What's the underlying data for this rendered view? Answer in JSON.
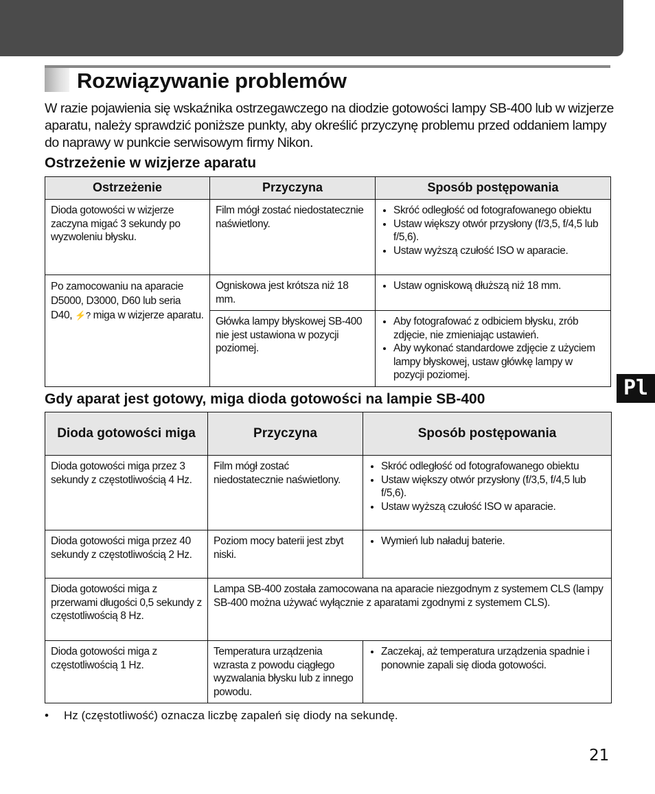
{
  "title": "Rozwiązywanie problemów",
  "intro": "W razie pojawienia się wskaźnika ostrzegawczego na diodzie gotowości lampy SB-400 lub w wizjerze aparatu, należy sprawdzić poniższe punkty, aby określić przyczynę problemu przed oddaniem lampy do naprawy w punkcie serwisowym firmy Nikon.",
  "section1": {
    "heading": "Ostrzeżenie w wizjerze aparatu",
    "headers": [
      "Ostrzeżenie",
      "Przyczyna",
      "Sposób postępowania"
    ],
    "rows": [
      {
        "warning": "Dioda gotowości w wizjerze zaczyna migać 3 sekundy po wyzwoleniu błysku.",
        "cause": "Film mógł zostać niedostatecznie naświetlony.",
        "actions": [
          "Skróć odległość od fotografowanego obiektu",
          "Ustaw większy otwór przysłony (f/3,5, f/4,5 lub f/5,6).",
          "Ustaw wyższą czułość ISO w aparacie."
        ]
      },
      {
        "warning_a": "Po zamocowaniu na aparacie D5000, D3000, D60 lub seria D40,",
        "warning_icon": "⚡?",
        "warning_b": "miga w wizjerze aparatu.",
        "sub": [
          {
            "cause": "Ogniskowa jest krótsza niż 18 mm.",
            "actions": [
              "Ustaw ogniskową dłuższą niż 18 mm."
            ]
          },
          {
            "cause": "Główka lampy błyskowej SB-400 nie jest ustawiona w pozycji poziomej.",
            "actions": [
              "Aby fotografować z odbiciem błysku, zrób zdjęcie, nie zmieniając ustawień.",
              "Aby wykonać standardowe zdjęcie z użyciem lampy błyskowej, ustaw główkę lampy w pozycji poziomej."
            ]
          }
        ]
      }
    ]
  },
  "section2": {
    "heading": "Gdy aparat jest gotowy, miga dioda gotowości na lampie SB-400",
    "headers": [
      "Dioda gotowości miga",
      "Przyczyna",
      "Sposób postępowania"
    ],
    "rows": [
      {
        "led": "Dioda gotowości miga przez 3 sekundy z częstotliwością 4 Hz.",
        "cause": "Film mógł zostać niedostatecznie naświetlony.",
        "actions": [
          "Skróć odległość od fotografowanego obiektu",
          "Ustaw większy otwór przysłony (f/3,5, f/4,5 lub f/5,6).",
          "Ustaw wyższą czułość ISO w aparacie."
        ]
      },
      {
        "led": "Dioda gotowości miga przez 40 sekundy z częstotliwością 2 Hz.",
        "cause": "Poziom mocy baterii jest zbyt niski.",
        "actions": [
          "Wymień lub naładuj baterie."
        ]
      },
      {
        "led": "Dioda gotowości miga z przerwami długości 0,5 sekundy z częstotliwością 8 Hz.",
        "cause": "Lampa SB-400 została zamocowana na aparacie niezgodnym z systemem CLS (lampy SB-400 można używać wyłącznie z aparatami zgodnymi z systemem CLS)."
      },
      {
        "led": "Dioda gotowości miga z częstotliwością 1 Hz.",
        "cause": "Temperatura urządzenia wzrasta z powodu ciągłego wyzwalania błysku lub z innego powodu.",
        "actions": [
          "Zaczekaj, aż temperatura urządzenia spadnie i ponownie zapali się dioda gotowości."
        ]
      }
    ]
  },
  "note": {
    "bullet": "•",
    "text": "Hz (częstotliwość) oznacza liczbę zapaleń się diody na sekundę."
  },
  "side_tab": "Pl",
  "page_number": "21"
}
